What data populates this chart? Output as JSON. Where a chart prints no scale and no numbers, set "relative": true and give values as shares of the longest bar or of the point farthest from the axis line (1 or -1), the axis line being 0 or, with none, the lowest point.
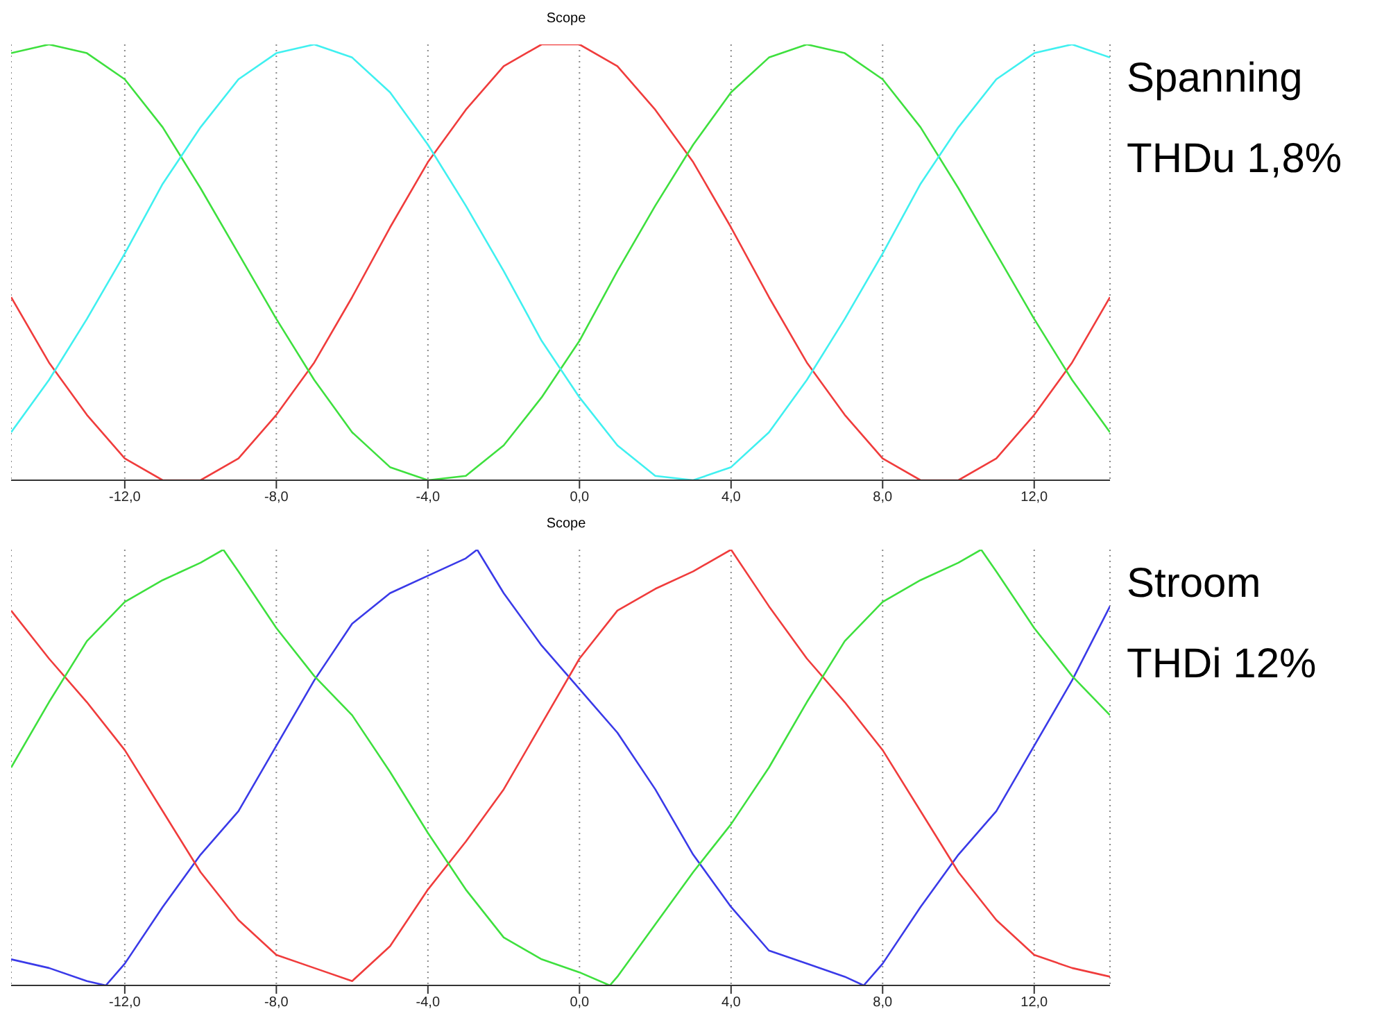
{
  "chart_data": [
    {
      "type": "line",
      "title": "Scope",
      "relative": true,
      "grid": "x",
      "marker": "none",
      "line_style": "solid",
      "annotations": [
        "Spanning",
        "THDu 1,8%"
      ],
      "xlim": [
        -15,
        14
      ],
      "xticks": [
        {
          "value": -12,
          "label": "-12,0"
        },
        {
          "value": -8,
          "label": "-8,0"
        },
        {
          "value": -4,
          "label": "-4,0"
        },
        {
          "value": 0,
          "label": "0,0"
        },
        {
          "value": 4,
          "label": "4,0"
        },
        {
          "value": 8,
          "label": "8,0"
        },
        {
          "value": 12,
          "label": "12,0"
        }
      ],
      "series": [
        {
          "color": "#f03c3c",
          "x": [
            -15,
            -14,
            -13,
            -12,
            -11,
            -10,
            -9,
            -8,
            -7,
            -6,
            -5,
            -4,
            -3,
            -2,
            -1,
            0,
            1,
            2,
            3,
            4,
            5,
            6,
            7,
            8,
            9,
            10,
            11,
            12,
            13,
            14
          ],
          "values": [
            0.42,
            0.27,
            0.15,
            0.05,
            0.0,
            0.0,
            0.05,
            0.15,
            0.27,
            0.42,
            0.58,
            0.73,
            0.85,
            0.95,
            1.0,
            1.0,
            0.95,
            0.85,
            0.73,
            0.58,
            0.42,
            0.27,
            0.15,
            0.05,
            0.0,
            0.0,
            0.05,
            0.15,
            0.27,
            0.42
          ]
        },
        {
          "color": "#3ee03e",
          "x": [
            -15,
            -14,
            -13,
            -12,
            -11,
            -10,
            -9,
            -8,
            -7,
            -6,
            -5,
            -4,
            -3,
            -2,
            -1,
            0,
            1,
            2,
            3,
            4,
            5,
            6,
            7,
            8,
            9,
            10,
            11,
            12,
            13,
            14
          ],
          "values": [
            0.98,
            1.0,
            0.98,
            0.92,
            0.81,
            0.67,
            0.52,
            0.37,
            0.23,
            0.11,
            0.03,
            0.0,
            0.01,
            0.08,
            0.19,
            0.32,
            0.48,
            0.63,
            0.77,
            0.89,
            0.97,
            1.0,
            0.98,
            0.92,
            0.81,
            0.67,
            0.52,
            0.37,
            0.23,
            0.11
          ]
        },
        {
          "color": "#40f0f0",
          "x": [
            -15,
            -14,
            -13,
            -12,
            -11,
            -10,
            -9,
            -8,
            -7,
            -6,
            -5,
            -4,
            -3,
            -2,
            -1,
            0,
            1,
            2,
            3,
            4,
            5,
            6,
            7,
            8,
            9,
            10,
            11,
            12,
            13,
            14
          ],
          "values": [
            0.11,
            0.23,
            0.37,
            0.52,
            0.68,
            0.81,
            0.92,
            0.98,
            1.0,
            0.97,
            0.89,
            0.77,
            0.63,
            0.48,
            0.32,
            0.19,
            0.08,
            0.01,
            0.0,
            0.03,
            0.11,
            0.23,
            0.37,
            0.52,
            0.68,
            0.81,
            0.92,
            0.98,
            1.0,
            0.97
          ]
        }
      ]
    },
    {
      "type": "line",
      "title": "Scope",
      "relative": true,
      "grid": "x",
      "marker": "none",
      "line_style": "solid",
      "annotations": [
        "Stroom",
        "THDi 12%"
      ],
      "xlim": [
        -15,
        14
      ],
      "xticks": [
        {
          "value": -12,
          "label": "-12,0"
        },
        {
          "value": -8,
          "label": "-8,0"
        },
        {
          "value": -4,
          "label": "-4,0"
        },
        {
          "value": 0,
          "label": "0,0"
        },
        {
          "value": 4,
          "label": "4,0"
        },
        {
          "value": 8,
          "label": "8,0"
        },
        {
          "value": 12,
          "label": "12,0"
        }
      ],
      "series": [
        {
          "color": "#3a3ae8",
          "x": [
            -15,
            -14,
            -13,
            -12.5,
            -12,
            -11,
            -10,
            -9,
            -8,
            -7,
            -6,
            -5,
            -4,
            -3,
            -2.7,
            -2,
            -1,
            0,
            1,
            2,
            3,
            4,
            5,
            6,
            7,
            7.5,
            8,
            9,
            10,
            11,
            12,
            13,
            14
          ],
          "values": [
            0.06,
            0.04,
            0.01,
            0.0,
            0.05,
            0.18,
            0.3,
            0.4,
            0.55,
            0.7,
            0.83,
            0.9,
            0.94,
            0.98,
            1.0,
            0.9,
            0.78,
            0.68,
            0.58,
            0.45,
            0.3,
            0.18,
            0.08,
            0.05,
            0.02,
            0.0,
            0.05,
            0.18,
            0.3,
            0.4,
            0.55,
            0.7,
            0.87
          ]
        },
        {
          "color": "#f03c3c",
          "x": [
            -15,
            -14,
            -13,
            -12,
            -11,
            -10,
            -9,
            -8,
            -7,
            -6,
            -5,
            -4,
            -3,
            -2,
            -1,
            0,
            1,
            2,
            3,
            4,
            5,
            6,
            7,
            8,
            9,
            10,
            11,
            12,
            13,
            14
          ],
          "values": [
            0.86,
            0.75,
            0.65,
            0.54,
            0.4,
            0.26,
            0.15,
            0.07,
            0.04,
            0.01,
            0.09,
            0.22,
            0.33,
            0.45,
            0.6,
            0.75,
            0.86,
            0.91,
            0.95,
            1.0,
            0.87,
            0.75,
            0.65,
            0.54,
            0.4,
            0.26,
            0.15,
            0.07,
            0.04,
            0.02
          ]
        },
        {
          "color": "#3ee03e",
          "x": [
            -15,
            -14,
            -13,
            -12,
            -11,
            -10,
            -9.4,
            -9,
            -8,
            -7,
            -6,
            -5,
            -4,
            -3,
            -2,
            -1,
            0,
            0.8,
            1,
            2,
            3,
            4,
            5,
            6,
            7,
            8,
            9,
            10,
            10.6,
            11,
            12,
            13,
            14
          ],
          "values": [
            0.5,
            0.65,
            0.79,
            0.88,
            0.93,
            0.97,
            1.0,
            0.95,
            0.82,
            0.71,
            0.62,
            0.49,
            0.35,
            0.22,
            0.11,
            0.06,
            0.03,
            0.0,
            0.02,
            0.14,
            0.26,
            0.37,
            0.5,
            0.65,
            0.79,
            0.88,
            0.93,
            0.97,
            1.0,
            0.95,
            0.82,
            0.71,
            0.62
          ]
        }
      ]
    }
  ]
}
